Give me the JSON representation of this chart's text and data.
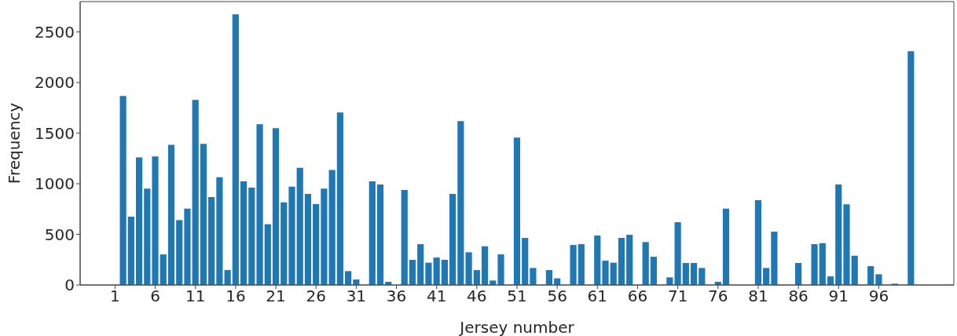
{
  "chart_data": {
    "type": "bar",
    "xlabel": "Jersey number",
    "ylabel": "Frequency",
    "x": [
      2,
      3,
      4,
      5,
      6,
      7,
      8,
      9,
      10,
      11,
      12,
      13,
      14,
      15,
      16,
      17,
      18,
      19,
      20,
      21,
      22,
      23,
      24,
      25,
      26,
      27,
      28,
      29,
      30,
      31,
      33,
      34,
      35,
      37,
      38,
      39,
      40,
      41,
      42,
      43,
      44,
      45,
      46,
      47,
      48,
      49,
      51,
      52,
      53,
      55,
      56,
      58,
      59,
      61,
      62,
      63,
      64,
      65,
      67,
      68,
      70,
      71,
      72,
      73,
      74,
      76,
      77,
      81,
      82,
      83,
      86,
      88,
      89,
      90,
      91,
      92,
      93,
      95,
      96,
      98,
      100
    ],
    "values": [
      1868,
      674,
      1261,
      953,
      1271,
      302,
      1385,
      641,
      755,
      1829,
      1395,
      868,
      1065,
      147,
      2674,
      1023,
      961,
      1589,
      600,
      1550,
      817,
      972,
      1158,
      899,
      798,
      953,
      1137,
      1705,
      137,
      54,
      1023,
      992,
      31,
      938,
      248,
      403,
      220,
      271,
      248,
      899,
      1620,
      323,
      147,
      382,
      44,
      302,
      1457,
      465,
      168,
      147,
      65,
      395,
      403,
      488,
      240,
      220,
      465,
      496,
      424,
      279,
      75,
      620,
      217,
      217,
      168,
      31,
      755,
      837,
      168,
      527,
      217,
      403,
      413,
      85,
      992,
      796,
      289,
      186,
      106,
      13,
      2310
    ],
    "color": "#1f77b4",
    "xlim": [
      -3.34,
      105.34
    ],
    "xticks": [
      1,
      6,
      11,
      16,
      21,
      26,
      31,
      36,
      41,
      46,
      51,
      56,
      61,
      66,
      71,
      76,
      81,
      86,
      91,
      96
    ],
    "ylim": [
      0,
      2800
    ],
    "yticks": [
      0,
      500,
      1000,
      1500,
      2000,
      2500
    ]
  }
}
